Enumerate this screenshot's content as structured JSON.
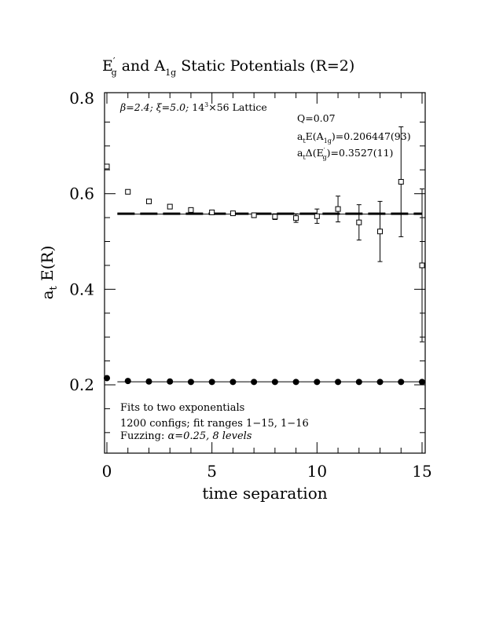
{
  "chart_data": {
    "type": "scatter",
    "title": {
      "prefix": "E",
      "prefix_sup": "′",
      "prefix_sub": "g",
      "middle": " and A",
      "middle_sub": "1g",
      "suffix": " Static Potentials (R=2)"
    },
    "xlabel": "time separation",
    "ylabel": {
      "main": "a",
      "sub": "t",
      "rest": " E(R)"
    },
    "xlim": [
      0,
      15
    ],
    "ylim": [
      0.05,
      0.82
    ],
    "x_ticks": [
      {
        "value": 0,
        "label": "0"
      },
      {
        "value": 5,
        "label": "5"
      },
      {
        "value": 10,
        "label": "10"
      },
      {
        "value": 15,
        "label": "15"
      }
    ],
    "y_ticks": [
      {
        "value": 0.2,
        "label": "0.2"
      },
      {
        "value": 0.4,
        "label": "0.4"
      },
      {
        "value": 0.6,
        "label": "0.6"
      },
      {
        "value": 0.8,
        "label": "0.8"
      }
    ],
    "x_minor_step": 1,
    "y_minor_step": 0.05,
    "grid": false,
    "series": [
      {
        "marker": "open-square",
        "color": "#000000",
        "points": [
          {
            "x": 0,
            "y": 0.657,
            "err": 0.002
          },
          {
            "x": 1,
            "y": 0.604,
            "err": 0.002
          },
          {
            "x": 2,
            "y": 0.584,
            "err": 0.002
          },
          {
            "x": 3,
            "y": 0.573,
            "err": 0.003
          },
          {
            "x": 4,
            "y": 0.566,
            "err": 0.003
          },
          {
            "x": 5,
            "y": 0.561,
            "err": 0.003
          },
          {
            "x": 6,
            "y": 0.559,
            "err": 0.004
          },
          {
            "x": 7,
            "y": 0.555,
            "err": 0.005
          },
          {
            "x": 8,
            "y": 0.552,
            "err": 0.006
          },
          {
            "x": 9,
            "y": 0.549,
            "err": 0.009
          },
          {
            "x": 10,
            "y": 0.553,
            "err": 0.015
          },
          {
            "x": 11,
            "y": 0.568,
            "err": 0.027
          },
          {
            "x": 12,
            "y": 0.54,
            "err": 0.037
          },
          {
            "x": 13,
            "y": 0.521,
            "err": 0.063
          },
          {
            "x": 14,
            "y": 0.625,
            "err": 0.115
          },
          {
            "x": 15,
            "y": 0.45,
            "err": 0.16
          }
        ]
      },
      {
        "marker": "filled-circle",
        "color": "#000000",
        "points": [
          {
            "x": 0,
            "y": 0.214
          },
          {
            "x": 1,
            "y": 0.208
          },
          {
            "x": 2,
            "y": 0.207
          },
          {
            "x": 3,
            "y": 0.207
          },
          {
            "x": 4,
            "y": 0.206
          },
          {
            "x": 5,
            "y": 0.206
          },
          {
            "x": 6,
            "y": 0.206
          },
          {
            "x": 7,
            "y": 0.206
          },
          {
            "x": 8,
            "y": 0.206
          },
          {
            "x": 9,
            "y": 0.206
          },
          {
            "x": 10,
            "y": 0.206
          },
          {
            "x": 11,
            "y": 0.206
          },
          {
            "x": 12,
            "y": 0.206
          },
          {
            "x": 13,
            "y": 0.206
          },
          {
            "x": 14,
            "y": 0.206
          },
          {
            "x": 15,
            "y": 0.206
          }
        ]
      }
    ],
    "fit_lines": [
      {
        "style": "solid",
        "y": 0.5574,
        "x_range": [
          0.5,
          15
        ]
      },
      {
        "style": "dashed",
        "y": 0.5574,
        "x_range": [
          0.5,
          15
        ]
      },
      {
        "style": "solid",
        "y": 0.2064,
        "x_range": [
          0.5,
          15
        ]
      }
    ],
    "annotations": {
      "params": {
        "beta": "β=2.4;",
        "xi": "ξ=5.0;",
        "lattice_pre": "14",
        "lattice_sup": "3",
        "lattice_post": "×56 Lattice"
      },
      "q": "Q=0.07",
      "energy_a1g": {
        "a": "a",
        "a_sub": "t",
        "mid": "E(A",
        "mid_sub": "1g",
        "tail": ")=0.206447(93)"
      },
      "energy_eg": {
        "a": "a",
        "a_sub": "t",
        "mid": "Δ(E",
        "mid_sup": "′",
        "mid_sub": "g",
        "tail": ")=0.3527(11)"
      },
      "fits_line1": "Fits to two exponentials",
      "fits_line2": "1200 configs; fit ranges 1−15, 1−16",
      "fits_line3_pre": "Fuzzing: ",
      "fits_line3_alpha": "α=0.25, 8 levels"
    }
  }
}
